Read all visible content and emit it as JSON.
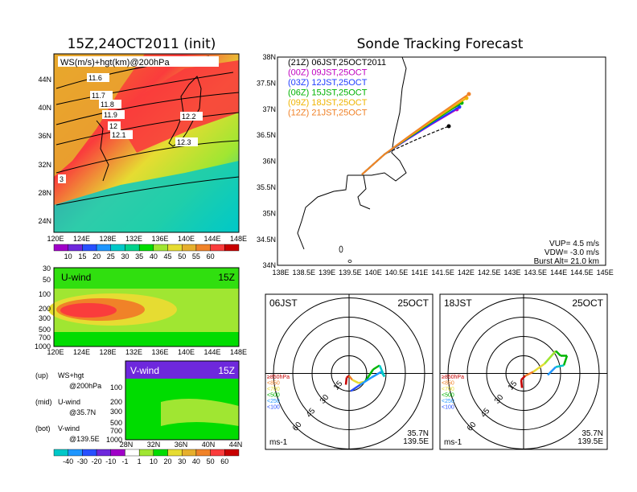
{
  "left_title": "15Z,24OCT2011 (init)",
  "right_title": "Sonde Tracking Forecast",
  "map_panel": {
    "label": "WS(m/s)+hgt(km)@200hPa",
    "lat_ticks": [
      "44N",
      "40N",
      "36N",
      "32N",
      "28N",
      "24N"
    ],
    "lon_ticks": [
      "120E",
      "124E",
      "128E",
      "132E",
      "136E",
      "140E",
      "144E",
      "148E"
    ],
    "contour_labels": [
      "11.6",
      "11.7",
      "11.8",
      "11.9",
      "12",
      "12.1",
      "12.2",
      "12.3",
      "3"
    ]
  },
  "colorbar_top": {
    "labels": [
      "10",
      "15",
      "20",
      "25",
      "30",
      "35",
      "40",
      "45",
      "50",
      "55",
      "60"
    ]
  },
  "uwind_panel": {
    "label": "U-wind",
    "time": "15Z",
    "p_ticks": [
      "30",
      "50",
      "100",
      "200",
      "300",
      "500",
      "700",
      "1000"
    ],
    "lon_ticks": [
      "120E",
      "124E",
      "128E",
      "132E",
      "136E",
      "140E",
      "144E",
      "148E"
    ]
  },
  "vwind_panel": {
    "label": "V-wind",
    "time": "15Z",
    "p_ticks": [
      "100",
      "200",
      "300",
      "500",
      "700",
      "1000"
    ],
    "lat_ticks": [
      "28N",
      "32N",
      "36N",
      "40N",
      "44N"
    ]
  },
  "legend_notes": [
    {
      "tag": "(up)",
      "line1": "WS+hgt",
      "line2": "@200hPa"
    },
    {
      "tag": "(mid)",
      "line1": "U-wind",
      "line2": "@35.7N"
    },
    {
      "tag": "(bot)",
      "line1": "V-wind",
      "line2": "@139.5E"
    }
  ],
  "colorbar_bottom": {
    "labels": [
      "-40",
      "-30",
      "-20",
      "-10",
      "-1",
      "1",
      "10",
      "20",
      "30",
      "40",
      "50",
      "60"
    ]
  },
  "track_panel": {
    "lat_ticks": [
      "38N",
      "37.5N",
      "37N",
      "36.5N",
      "36N",
      "35.5N",
      "35N",
      "34.5N",
      "34N"
    ],
    "lon_ticks": [
      "138E",
      "138.5E",
      "139E",
      "139.5E",
      "140E",
      "140.5E",
      "141E",
      "141.5E",
      "142E",
      "142.5E",
      "143E",
      "143.5E",
      "144E",
      "144.5E",
      "145E"
    ],
    "legend": [
      {
        "label": "(21Z)  06JST,25OCT2011",
        "color": "#000000"
      },
      {
        "label": "(00Z)  09JST,25OCT",
        "color": "#c000c0"
      },
      {
        "label": "(03Z)  12JST,25OCT",
        "color": "#1e3cff"
      },
      {
        "label": "(06Z)  15JST,25OCT",
        "color": "#00b400"
      },
      {
        "label": "(09Z)  18JST,25OCT",
        "color": "#f0b400"
      },
      {
        "label": "(12Z)  21JST,25OCT",
        "color": "#f08228"
      }
    ],
    "stats": [
      "VUP= 4.5 m/s",
      "VDW= -3.0 m/s",
      "Burst Alt= 21.0 km"
    ]
  },
  "hodo_left": {
    "time": "06JST",
    "date": "25OCT",
    "ring_labels": [
      "15",
      "30",
      "45",
      "60"
    ],
    "unit": "ms-1",
    "location": [
      "35.7N",
      "139.5E"
    ],
    "levels": [
      "≥850hPa",
      "<850",
      "<700",
      "<500",
      "<250",
      "<100"
    ]
  },
  "hodo_right": {
    "time": "18JST",
    "date": "25OCT",
    "ring_labels": [
      "15",
      "30",
      "45",
      "60"
    ],
    "unit": "ms-1",
    "location": [
      "35.7N",
      "139.5E"
    ],
    "levels": [
      "≥850hPa",
      "<850",
      "<700",
      "<500",
      "<250",
      "<100"
    ]
  },
  "colors": {
    "ws_scale": [
      "#a000c8",
      "#6e28dc",
      "#2850ff",
      "#1e96ff",
      "#00c8c8",
      "#00d28c",
      "#00dc00",
      "#a0e632",
      "#e6dc32",
      "#e6af2d",
      "#f08228",
      "#fa3c3c",
      "#c80000"
    ]
  }
}
